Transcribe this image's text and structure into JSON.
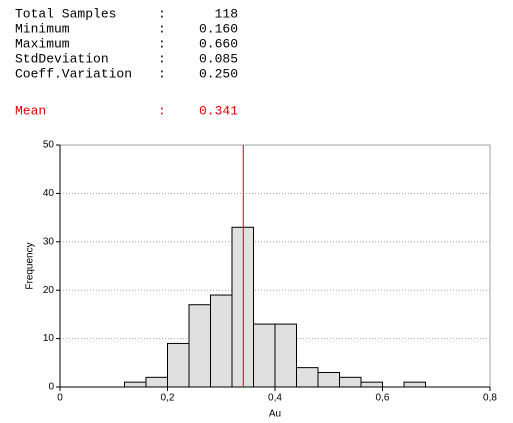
{
  "stats": {
    "rows": [
      {
        "label": "Total Samples",
        "separator": ":",
        "value": "118"
      },
      {
        "label": "Minimum",
        "separator": ":",
        "value": "0.160"
      },
      {
        "label": "Maximum",
        "separator": ":",
        "value": "0.660"
      },
      {
        "label": "StdDeviation",
        "separator": ":",
        "value": "0.085"
      },
      {
        "label": "Coeff.Variation",
        "separator": ":",
        "value": "0.250"
      }
    ],
    "mean": {
      "label": "Mean",
      "separator": ":",
      "value": "0.341",
      "color": "#e00000"
    }
  },
  "chart_data": {
    "type": "histogram",
    "x_label": "Au",
    "y_label": "Frequency",
    "bins": [
      0.12,
      0.16,
      0.2,
      0.24,
      0.28,
      0.32,
      0.36,
      0.4,
      0.44,
      0.48,
      0.52,
      0.56,
      0.6,
      0.64,
      0.68
    ],
    "values": [
      1,
      2,
      9,
      17,
      19,
      33,
      13,
      13,
      4,
      3,
      2,
      1,
      0,
      1
    ],
    "color": "#e0e0e0",
    "vline": {
      "value": 0.341,
      "color": "#e00000"
    },
    "xlim": [
      0,
      0.8
    ],
    "xticks": [
      0,
      {
        "value": 0.2,
        "label": "0,2"
      },
      {
        "value": 0.4,
        "label": "0,4"
      },
      {
        "value": 0.6,
        "label": "0,6"
      },
      {
        "value": 0.8,
        "label": "0,8"
      }
    ],
    "ylim": [
      0,
      50
    ],
    "yticks": [
      0,
      10,
      20,
      30,
      40,
      50
    ],
    "grid": true
  }
}
